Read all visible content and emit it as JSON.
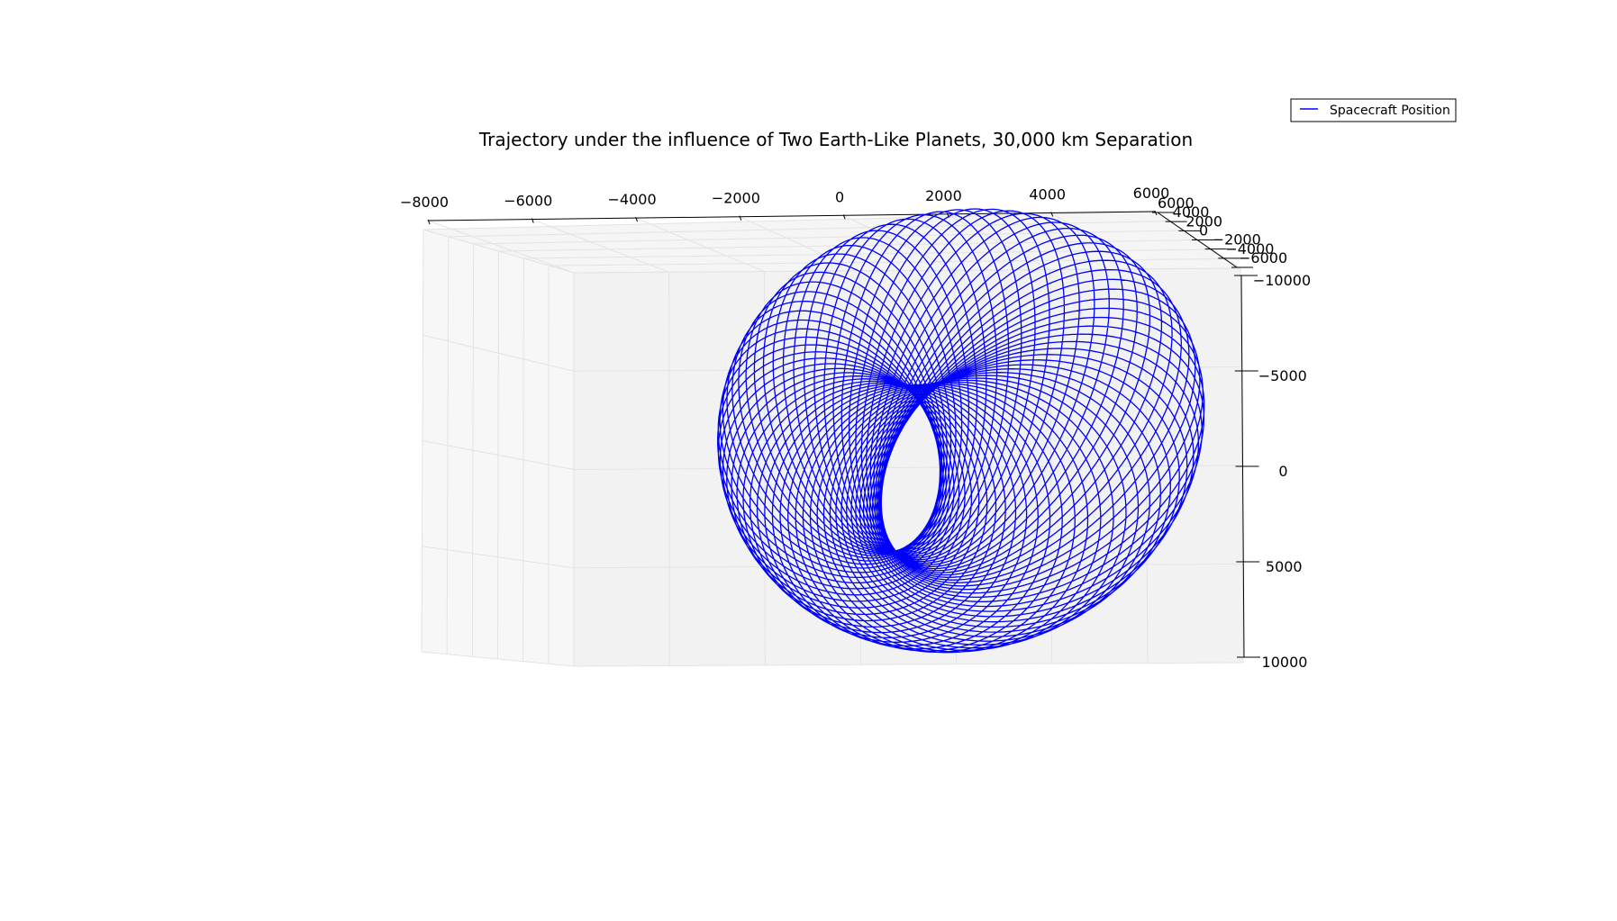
{
  "chart_data": {
    "type": "line",
    "projection": "3d",
    "title": "Trajectory under the influence of Two Earth-Like Planets, 30,000 km Separation",
    "xlabel": "",
    "ylabel": "",
    "zlabel": "",
    "x_axis": {
      "range": [
        -8000,
        6000
      ],
      "ticks": [
        -8000,
        -6000,
        -4000,
        -2000,
        0,
        2000,
        4000,
        6000
      ],
      "tick_labels": [
        "−8000",
        "−6000",
        "−4000",
        "−2000",
        "0",
        "2000",
        "4000",
        "6000"
      ]
    },
    "y_axis": {
      "range": [
        -6000,
        6000
      ],
      "ticks": [
        6000,
        4000,
        2000,
        0,
        -2000,
        -4000,
        -6000
      ],
      "tick_labels": [
        "6000",
        "4000",
        "2000",
        "0",
        "−2000",
        "−4000",
        "−6000"
      ]
    },
    "z_axis": {
      "range": [
        -10000,
        10000
      ],
      "ticks": [
        -10000,
        -5000,
        0,
        5000,
        10000
      ],
      "tick_labels": [
        "−10000",
        "−5000",
        "0",
        "5000",
        "10000"
      ]
    },
    "grid": true,
    "legend": {
      "placement": "upper-right",
      "entries": [
        {
          "name": "Spacecraft Position",
          "color": "#0000ff"
        }
      ]
    },
    "series": [
      {
        "name": "Spacecraft Position",
        "color": "#0000ff",
        "approximate_shape": "precessing elliptical orbits forming a toroidal trajectory",
        "x_extent": [
          -6000,
          6000
        ],
        "z_extent": [
          -10000,
          9000
        ]
      }
    ]
  }
}
